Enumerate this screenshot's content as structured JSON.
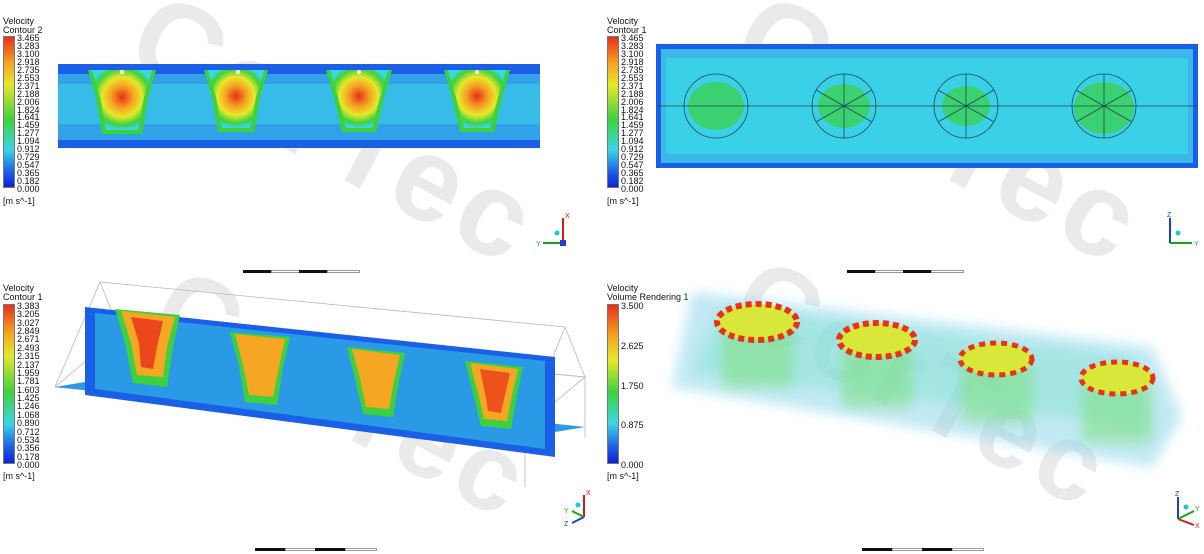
{
  "panels": [
    {
      "title": "Velocity",
      "subtitle": "Contour 2",
      "ticks": [
        "3.465",
        "3.283",
        "3.100",
        "2.918",
        "2.735",
        "2.553",
        "2.371",
        "2.188",
        "2.006",
        "1.824",
        "1.641",
        "1.459",
        "1.277",
        "1.094",
        "0.912",
        "0.729",
        "0.547",
        "0.365",
        "0.182",
        "0.000"
      ],
      "unit": "[m s^-1]",
      "axis": [
        "X",
        "Y"
      ]
    },
    {
      "title": "Velocity",
      "subtitle": "Contour 1",
      "ticks": [
        "3.465",
        "3.283",
        "3.100",
        "2.918",
        "2.735",
        "2.553",
        "2.371",
        "2.188",
        "2.006",
        "1.824",
        "1.641",
        "1.459",
        "1.277",
        "1.094",
        "0.912",
        "0.729",
        "0.547",
        "0.365",
        "0.182",
        "0.000"
      ],
      "unit": "[m s^-1]",
      "axis": [
        "Z",
        "Y"
      ]
    },
    {
      "title": "Velocity",
      "subtitle": "Contour 1",
      "ticks": [
        "3.383",
        "3.205",
        "3.027",
        "2.849",
        "2.671",
        "2.493",
        "2.315",
        "2.137",
        "1.959",
        "1.781",
        "1.603",
        "1.425",
        "1.246",
        "1.068",
        "0.890",
        "0.712",
        "0.534",
        "0.356",
        "0.178",
        "0.000"
      ],
      "unit": "[m s^-1]",
      "axis": [
        "X",
        "Z",
        "Y"
      ]
    },
    {
      "title": "Velocity",
      "subtitle": "Volume Rendering 1",
      "ticks": [
        "3.500",
        "2.625",
        "1.750",
        "0.875",
        "0.000"
      ],
      "unit": "[m s^-1]",
      "axis": [
        "Z",
        "X",
        "Y"
      ]
    }
  ],
  "watermark": "CorTec",
  "colors": {
    "high": "#e8301a",
    "orange": "#f5a623",
    "yellow": "#e7e72a",
    "green": "#3dd23d",
    "cyan": "#3bd6e6",
    "blue": "#1a5fe6",
    "low": "#1020d8"
  }
}
